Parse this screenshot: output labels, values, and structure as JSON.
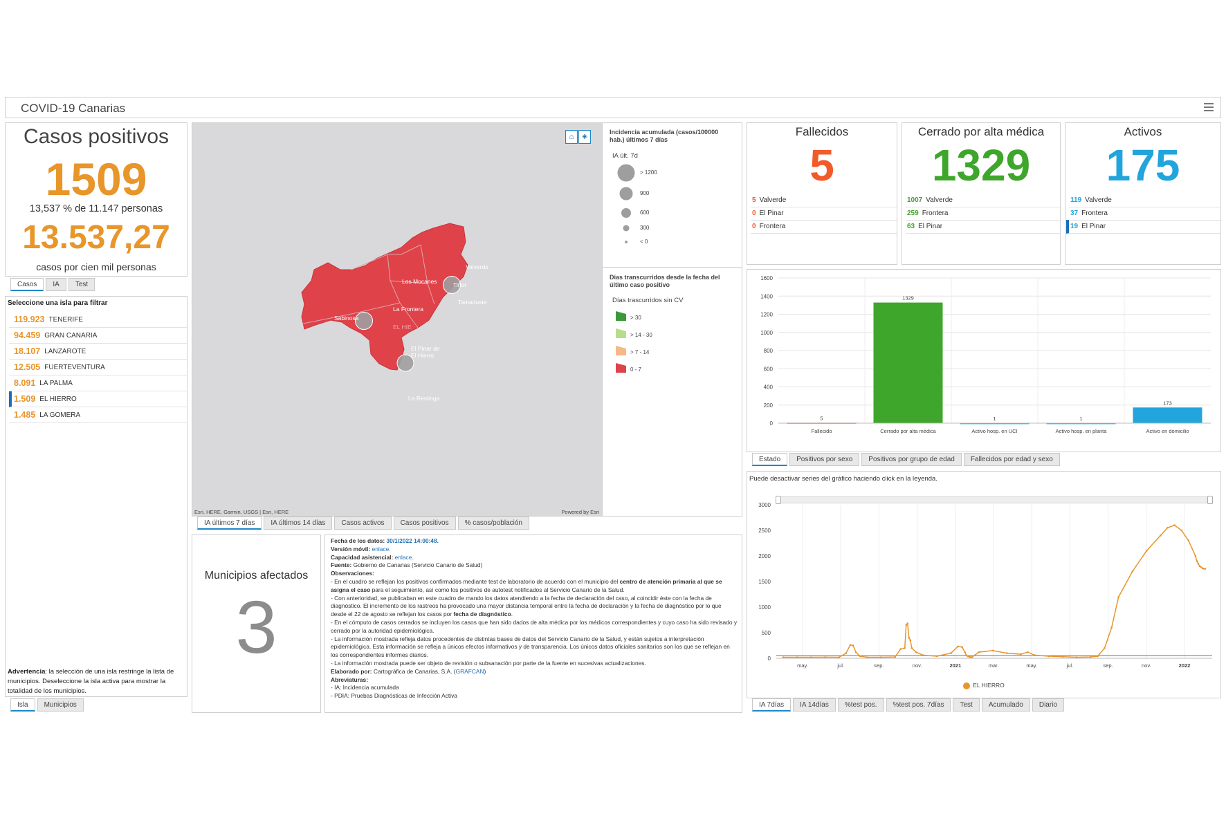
{
  "header": {
    "title": "COVID-19 Canarias"
  },
  "casos": {
    "title": "Casos positivos",
    "value": "1509",
    "subtitle": "13,537 % de 11.147 personas",
    "rate": "13.537,27",
    "rate_label": "casos por cien mil personas",
    "tabs": [
      "Casos",
      "IA",
      "Test"
    ]
  },
  "islands": {
    "header": "Seleccione una isla para filtrar",
    "items": [
      {
        "value": "119.923",
        "name": "TENERIFE"
      },
      {
        "value": "94.459",
        "name": "GRAN CANARIA"
      },
      {
        "value": "18.107",
        "name": "LANZAROTE"
      },
      {
        "value": "12.505",
        "name": "FUERTEVENTURA"
      },
      {
        "value": "8.091",
        "name": "LA PALMA"
      },
      {
        "value": "1.509",
        "name": "EL HIERRO",
        "selected": true
      },
      {
        "value": "1.485",
        "name": "LA GOMERA"
      }
    ],
    "warning_bold": "Advertencia",
    "warning": ": la selección de una isla restringe la lista de municipios. Deseleccione la isla activa para mostrar la totalidad de los municipios.",
    "tabs": [
      "Isla",
      "Municipios"
    ]
  },
  "map": {
    "attribution": "Esri, HERE, Garmin, USGS | Esri, HERE",
    "powered": "Powered by Esri",
    "labels": [
      "Valverde",
      "Los Mocanes",
      "Tiñor",
      "Tamaduste",
      "La Frontera",
      "Sabinosa",
      "EL HIE",
      "El Pinar de El Hierro",
      "La Restinga"
    ],
    "home_icon": "home-icon",
    "layers_icon": "layers-icon",
    "tabs": [
      "IA últimos 7 días",
      "IA últimos 14 días",
      "Casos activos",
      "Casos positivos",
      "% casos/población"
    ]
  },
  "legend": {
    "title1": "Incidencia acumulada (casos/100000 hab.) últimos 7 días",
    "sub1": "IA últ. 7d",
    "circles": [
      "> 1200",
      "900",
      "600",
      "300",
      "< 0"
    ],
    "title2": "Días transcurridos desde la fecha del último caso positivo",
    "sub2": "Días trascurridos sin CV",
    "swatches": [
      {
        "label": "> 30",
        "color": "#3a9a3a"
      },
      {
        "label": "> 14 - 30",
        "color": "#b8dc8c"
      },
      {
        "label": "> 7 - 14",
        "color": "#f6b888"
      },
      {
        "label": "0 - 7",
        "color": "#e0424a"
      }
    ]
  },
  "municipios": {
    "title": "Municipios afectados",
    "value": "3"
  },
  "notes": {
    "fecha_label": "Fecha de los datos:",
    "fecha": "30/1/2022 14:00:48.",
    "movil_label": "Versión móvil:",
    "movil_link": "enlace.",
    "capacidad_label": "Capacidad asistencial:",
    "capacidad_link": "enlace.",
    "fuente_label": "Fuente:",
    "fuente": " Gobierno de Canarias (Servicio Canario de Salud)",
    "obs_label": "Observaciones:",
    "obs1a": "- En el cuadro se reflejan los positivos confirmados mediante test de laboratorio de acuerdo con el municipio del ",
    "obs1b": "centro de atención primaria al que se asigna el caso",
    "obs1c": " para el seguimiento, así como los positivos de autotest notificados al Servicio Canario de la Salud.",
    "obs2a": "- Con anterioridad, se publicaban en este cuadro de mando los datos atendiendo a la fecha de declaración del caso, al coincidir éste con la fecha de diagnóstico. El incremento de los rastreos ha provocado una mayor distancia temporal entre la fecha de declaración y la fecha de diagnóstico por lo que desde el 22 de agosto se reflejan los casos por ",
    "obs2b": "fecha de diagnóstico",
    "obs2c": ".",
    "obs3": "- En el cómputo de casos cerrados se incluyen los casos que han sido dados de alta médica por los médicos correspondientes y cuyo caso ha sido revisado y cerrado por la autoridad epidemiológica.",
    "obs4": "- La información mostrada refleja datos procedentes de distintas bases de datos del Servicio Canario de la Salud, y están sujetos a interpretación epidemiológica. Esta información se refleja a únicos efectos informativos y de transparencia. Los únicos datos oficiales sanitarios son los que se reflejan en los correspondientes informes diarios.",
    "obs5": "- La información mostrada puede ser objeto de revisión o subsanación por parte de la fuente en sucesivas actualizaciones.",
    "elab_label": "Elaborado por:",
    "elab": " Cartográfica de Canarias, S.A. (",
    "elab_link": "GRAFCAN",
    "elab_end": ")",
    "abrev_label": "Abreviaturas:",
    "abrev1": "- IA: Incidencia acumulada",
    "abrev2": "- PDIA:  Pruebas Diagnósticas de Infección Activa"
  },
  "fallecidos": {
    "title": "Fallecidos",
    "value": "5",
    "rows": [
      {
        "v": "5",
        "n": "Valverde"
      },
      {
        "v": "0",
        "n": "El Pinar"
      },
      {
        "v": "0",
        "n": "Frontera"
      }
    ],
    "color": "#f25a2a"
  },
  "cerrado": {
    "title": "Cerrado por alta médica",
    "value": "1329",
    "rows": [
      {
        "v": "1007",
        "n": "Valverde"
      },
      {
        "v": "259",
        "n": "Frontera"
      },
      {
        "v": "63",
        "n": "El Pinar"
      }
    ],
    "color": "#3ea62a"
  },
  "activos": {
    "title": "Activos",
    "value": "175",
    "rows": [
      {
        "v": "119",
        "n": "Valverde"
      },
      {
        "v": "37",
        "n": "Frontera"
      },
      {
        "v": "19",
        "n": "El Pinar"
      }
    ],
    "color": "#22a4dc"
  },
  "chart_data": [
    {
      "type": "bar",
      "categories": [
        "Fallecido",
        "Cerrado por alta médica",
        "Activo hosp. en UCI",
        "Activo hosp. en planta",
        "Activo en domicilio"
      ],
      "values": [
        5,
        1329,
        1,
        1,
        173
      ],
      "colors": [
        "#f25a2a",
        "#3ea62a",
        "#22a4dc",
        "#22a4dc",
        "#22a4dc"
      ],
      "ylim": [
        0,
        1600
      ],
      "yticks": [
        0,
        200,
        400,
        600,
        800,
        1000,
        1200,
        1400,
        1600
      ],
      "grid": true
    },
    {
      "type": "line",
      "series": [
        {
          "name": "EL HIERRO",
          "color": "#e8952a"
        }
      ],
      "note": "Puede desactivar series del gráfico haciendo click en la leyenda.",
      "xticks": [
        "may.",
        "jul.",
        "sep.",
        "nov.",
        "2021",
        "mar.",
        "may.",
        "jul.",
        "sep.",
        "nov.",
        "2022"
      ],
      "ylim": [
        0,
        3000
      ],
      "yticks": [
        0,
        500,
        1000,
        1500,
        2000,
        2500,
        3000
      ],
      "threshold": 50,
      "x": [
        0,
        10,
        20,
        30,
        40,
        45,
        48,
        50,
        52,
        55,
        60,
        70,
        80,
        84,
        87,
        88,
        89,
        90,
        91,
        92,
        95,
        100,
        110,
        120,
        125,
        128,
        130,
        131,
        132,
        133,
        134,
        135,
        140,
        150,
        160,
        170,
        175,
        180,
        190,
        200,
        210,
        220,
        225,
        230,
        235,
        240,
        250,
        260,
        270,
        275,
        280,
        285,
        290,
        295,
        296,
        297,
        298,
        299,
        300,
        301,
        302
      ],
      "values": [
        20,
        20,
        20,
        22,
        20,
        100,
        260,
        250,
        120,
        40,
        20,
        20,
        25,
        180,
        200,
        650,
        680,
        400,
        350,
        200,
        120,
        60,
        40,
        100,
        230,
        220,
        120,
        60,
        40,
        30,
        25,
        20,
        120,
        150,
        100,
        80,
        120,
        60,
        40,
        30,
        20,
        25,
        40,
        200,
        600,
        1200,
        1700,
        2100,
        2400,
        2550,
        2600,
        2500,
        2300,
        2000,
        1900,
        1850,
        1800,
        1780,
        1760,
        1750,
        1750
      ]
    }
  ],
  "chart_tabs1": [
    "Estado",
    "Positivos por sexo",
    "Positivos por grupo de edad",
    "Fallecidos por edad y sexo"
  ],
  "chart_tabs2": [
    "IA 7días",
    "IA 14días",
    "%test pos.",
    "%test pos. 7días",
    "Test",
    "Acumulado",
    "Diario"
  ]
}
